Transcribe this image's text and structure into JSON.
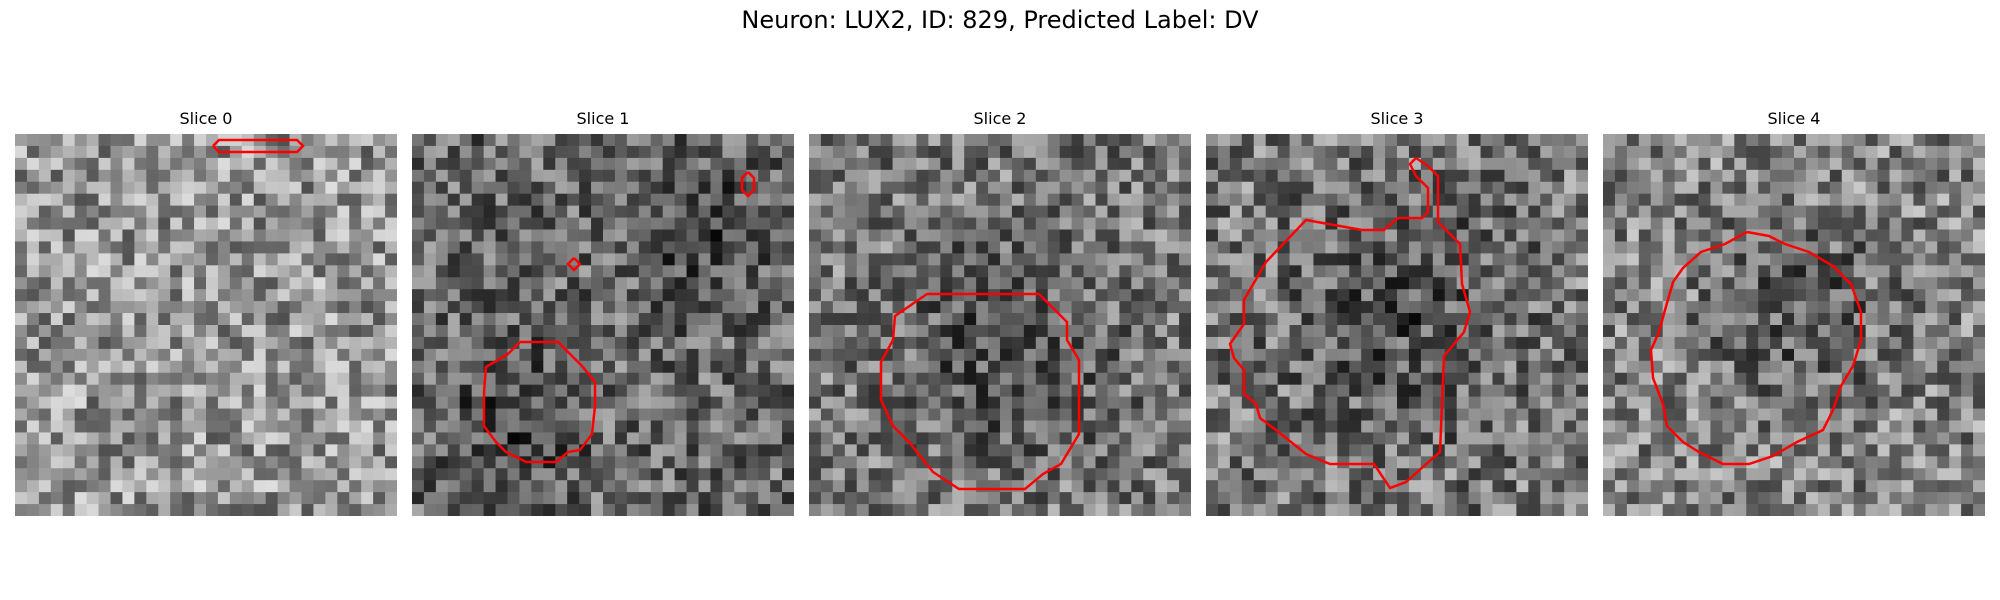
{
  "figure": {
    "title": "Neuron: LUX2, ID: 829, Predicted Label: DV",
    "contour_color": "#ff0000",
    "colormap": "grayscale"
  },
  "panels": [
    {
      "title": "Slice 0"
    },
    {
      "title": "Slice 1"
    },
    {
      "title": "Slice 2"
    },
    {
      "title": "Slice 3"
    },
    {
      "title": "Slice 4"
    }
  ]
}
